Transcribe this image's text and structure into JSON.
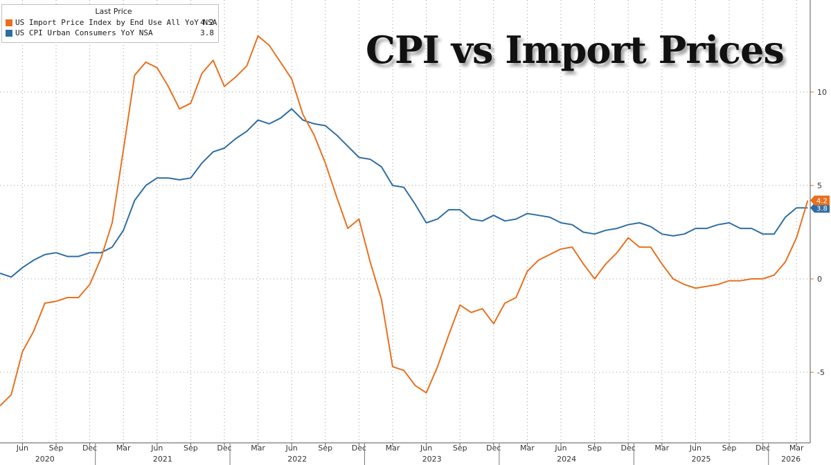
{
  "legend": {
    "header": "Last Price",
    "entries": [
      {
        "name": "US Import Price Index by End Use All YoY NSA",
        "value": "4.2",
        "color": "#e8701f"
      },
      {
        "name": "US CPI Urban Consumers YoY NSA",
        "value": "3.8",
        "color": "#2e6da4"
      }
    ]
  },
  "title": "CPI vs Import Prices",
  "chart_data": {
    "type": "line",
    "title": "CPI vs Import Prices",
    "y_axis_position": "right",
    "ylim": [
      -8.5,
      14
    ],
    "y_ticks": [
      -5,
      0,
      5,
      10
    ],
    "grid": true,
    "legend_position": "top-left",
    "x_month_labels": [
      "Jun",
      "Sep",
      "Dec",
      "Mar",
      "Jun",
      "Sep",
      "Dec",
      "Mar",
      "Jun",
      "Sep",
      "Dec",
      "Mar",
      "Jun",
      "Sep",
      "Dec",
      "Mar",
      "Jun",
      "Sep",
      "Dec",
      "Mar",
      "Jun",
      "Sep",
      "Dec",
      "Mar",
      "Jun",
      "Sep",
      "Dec",
      "Mar"
    ],
    "x_year_labels": [
      "2020",
      "2021",
      "2022",
      "2023",
      "2024",
      "2025",
      "2026"
    ],
    "x_dates": [
      "2020-04",
      "2020-05",
      "2020-06",
      "2020-07",
      "2020-08",
      "2020-09",
      "2020-10",
      "2020-11",
      "2020-12",
      "2021-01",
      "2021-02",
      "2021-03",
      "2021-04",
      "2021-05",
      "2021-06",
      "2021-07",
      "2021-08",
      "2021-09",
      "2021-10",
      "2021-11",
      "2021-12",
      "2022-01",
      "2022-02",
      "2022-03",
      "2022-04",
      "2022-05",
      "2022-06",
      "2022-07",
      "2022-08",
      "2022-09",
      "2022-10",
      "2022-11",
      "2022-12",
      "2023-01",
      "2023-02",
      "2023-03",
      "2023-04",
      "2023-05",
      "2023-06",
      "2023-07",
      "2023-08",
      "2023-09",
      "2023-10",
      "2023-11",
      "2023-12",
      "2024-01",
      "2024-02",
      "2024-03",
      "2024-04",
      "2024-05",
      "2024-06",
      "2024-07",
      "2024-08",
      "2024-09",
      "2024-10",
      "2024-11",
      "2024-12",
      "2025-01",
      "2025-02",
      "2025-03",
      "2025-04",
      "2025-05",
      "2025-06",
      "2025-07",
      "2025-08",
      "2025-09",
      "2025-10",
      "2025-11",
      "2025-12",
      "2026-01",
      "2026-02",
      "2026-03",
      "2026-04"
    ],
    "series": [
      {
        "name": "US Import Price Index by End Use All YoY NSA",
        "color": "#e8701f",
        "last_value": "4.2",
        "values": [
          -6.8,
          -6.2,
          -3.9,
          -2.8,
          -1.3,
          -1.2,
          -1.0,
          -1.0,
          -0.3,
          1.1,
          3.0,
          6.9,
          10.9,
          11.6,
          11.3,
          10.3,
          9.1,
          9.4,
          11.0,
          11.7,
          10.3,
          10.8,
          11.4,
          13.0,
          12.5,
          11.6,
          10.7,
          8.8,
          7.7,
          6.2,
          4.4,
          2.7,
          3.2,
          0.9,
          -1.1,
          -4.7,
          -4.9,
          -5.7,
          -6.1,
          -4.7,
          -3.0,
          -1.4,
          -1.8,
          -1.6,
          -2.4,
          -1.3,
          -1.0,
          0.4,
          1.0,
          1.3,
          1.6,
          1.7,
          0.8,
          0.0,
          0.8,
          1.4,
          2.2,
          1.7,
          1.7,
          0.8,
          0.0,
          -0.3,
          -0.5,
          -0.4,
          -0.3,
          -0.1,
          -0.1,
          0.0,
          0.0,
          0.2,
          0.9,
          2.2,
          4.2
        ]
      },
      {
        "name": "US CPI Urban Consumers YoY NSA",
        "color": "#2e6da4",
        "last_value": "3.8",
        "values": [
          0.3,
          0.1,
          0.6,
          1.0,
          1.3,
          1.4,
          1.2,
          1.2,
          1.4,
          1.4,
          1.7,
          2.6,
          4.2,
          5.0,
          5.4,
          5.4,
          5.3,
          5.4,
          6.2,
          6.8,
          7.0,
          7.5,
          7.9,
          8.5,
          8.3,
          8.6,
          9.1,
          8.5,
          8.3,
          8.2,
          7.7,
          7.1,
          6.5,
          6.4,
          6.0,
          5.0,
          4.9,
          4.0,
          3.0,
          3.2,
          3.7,
          3.7,
          3.2,
          3.1,
          3.4,
          3.1,
          3.2,
          3.5,
          3.4,
          3.3,
          3.0,
          2.9,
          2.5,
          2.4,
          2.6,
          2.7,
          2.9,
          3.0,
          2.8,
          2.4,
          2.3,
          2.4,
          2.7,
          2.7,
          2.9,
          3.0,
          2.7,
          2.7,
          2.4,
          2.4,
          3.3,
          3.8,
          3.8
        ]
      }
    ]
  }
}
